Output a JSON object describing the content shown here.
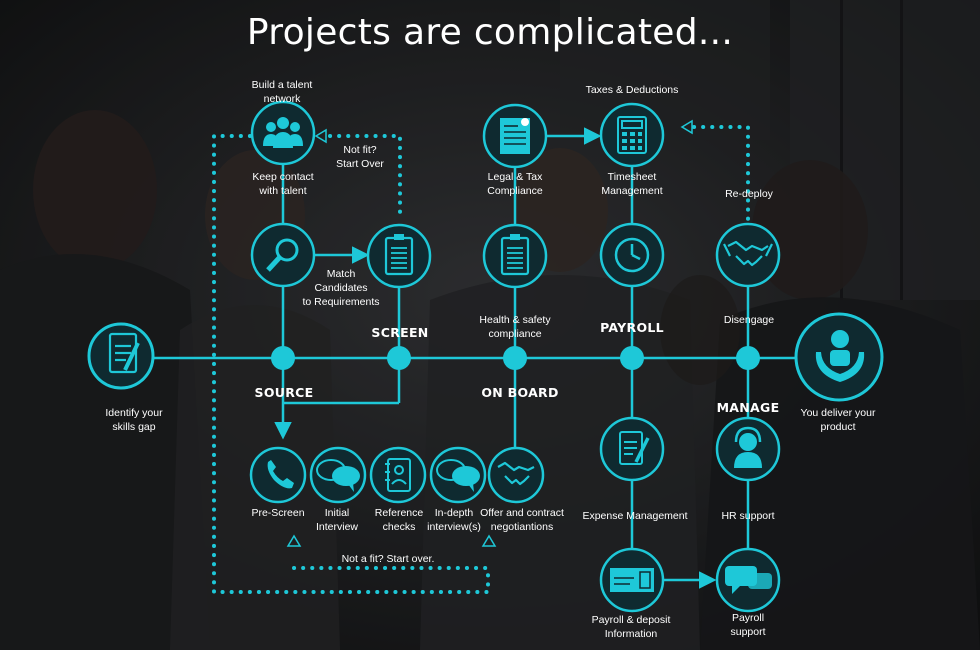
{
  "title": "Projects are complicated...",
  "stages": {
    "source": "SOURCE",
    "screen": "SCREEN",
    "onboard": "ON BOARD",
    "payroll": "PAYROLL",
    "manage": "MANAGE"
  },
  "labels": {
    "identify": "Identify your\nskills gap",
    "build_network": "Build a talent\nnetwork",
    "keep_contact": "Keep contact\nwith talent",
    "not_fit_top": "Not fit?\nStart Over",
    "match": "Match\nCandidates\nto Requirements",
    "prescreen": "Pre-Screen",
    "initial_interview": "Initial\nInterview",
    "reference_checks": "Reference\nchecks",
    "indepth_interview": "In-depth\ninterview(s)",
    "not_fit_bottom": "Not a fit?  Start over.",
    "legal_tax": "Legal & Tax\nCompliance",
    "health_safety": "Health & safety\ncompliance",
    "offer_contract": "Offer and contract\nnegotiantions",
    "taxes_deductions": "Taxes & Deductions",
    "timesheet": "Timesheet\nManagement",
    "expense": "Expense Management",
    "payroll_deposit": "Payroll & deposit\nInformation",
    "redeploy": "Re-deploy",
    "disengage": "Disengage",
    "hr_support": "HR support",
    "payroll_support": "Payroll\nsupport",
    "deliver": "You deliver your\nproduct"
  },
  "icons": {
    "identify": "checklist-pencil-icon",
    "network": "people-group-icon",
    "search": "magnifier-icon",
    "screen": "clipboard-icon",
    "prescreen": "phone-icon",
    "initial_interview": "speech-bubbles-icon",
    "reference_checks": "address-book-icon",
    "indepth_interview": "speech-bubbles-icon",
    "offer": "handshake-icon",
    "legal": "document-icon",
    "health": "clipboard-icon",
    "timesheet": "calculator-icon",
    "payroll": "clock-icon",
    "expense": "checklist-pencil-icon",
    "deposit": "cheque-icon",
    "disengage": "handshake-icon",
    "hr_support": "support-agent-icon",
    "payroll_support": "chat-bubbles-icon",
    "deliver": "hands-person-icon"
  },
  "colors": {
    "accent": "#1ec8d8",
    "node_fill": "#0f2a30",
    "text": "#ffffff",
    "background": "#1b1c1e"
  }
}
